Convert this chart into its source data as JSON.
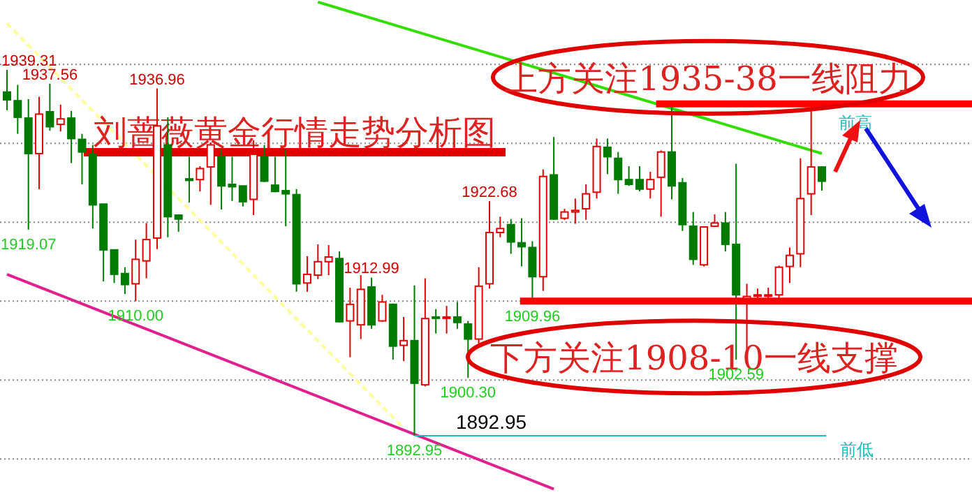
{
  "chart_data": {
    "type": "candlestick",
    "title": "刘蔷薇黄金行情走势分析图",
    "categories": [
      null,
      null,
      null,
      null,
      null,
      null,
      null,
      null,
      null,
      null,
      null,
      null,
      null,
      null,
      null,
      null,
      null,
      null,
      null,
      null,
      null,
      null,
      null,
      null,
      null,
      null,
      null,
      null,
      null,
      null,
      null,
      null,
      null,
      null,
      null,
      null,
      null,
      null,
      null,
      null,
      null,
      null,
      null,
      null,
      null,
      null,
      null,
      null,
      null,
      null,
      null,
      null,
      null,
      null,
      null,
      null,
      null,
      null,
      null,
      null,
      null,
      null,
      null,
      null,
      null,
      null,
      null,
      null,
      null,
      null,
      null,
      null,
      null,
      null,
      null,
      null,
      null
    ],
    "ohlc": [
      [
        1936.5,
        1939.31,
        1934.2,
        1935.5
      ],
      [
        1935.4,
        1937.4,
        1931.2,
        1933.3
      ],
      [
        1933.2,
        1935.6,
        1919.07,
        1928.7
      ],
      [
        1928.7,
        1935.9,
        1924.2,
        1933.7
      ],
      [
        1934.0,
        1937.56,
        1931.6,
        1932.1
      ],
      [
        1932.4,
        1934.9,
        1931.5,
        1933.1
      ],
      [
        1933.2,
        1934.1,
        1927.5,
        1930.6
      ],
      [
        1930.5,
        1931.2,
        1924.8,
        1928.9
      ],
      [
        1928.6,
        1929.8,
        1919.2,
        1922.2
      ],
      [
        1922.3,
        1922.3,
        1912.5,
        1916.5
      ],
      [
        1916.5,
        1916.5,
        1912.3,
        1913.4
      ],
      [
        1913.5,
        1914.3,
        1910.9,
        1912.1
      ],
      [
        1912.2,
        1917.8,
        1910.0,
        1915.3
      ],
      [
        1915.1,
        1919.9,
        1912.9,
        1917.8
      ],
      [
        1918.0,
        1936.96,
        1916.6,
        1932.2
      ],
      [
        1929.8,
        1933.3,
        1918.1,
        1920.7
      ],
      [
        1920.9,
        1921.0,
        1918.8,
        1920.4
      ],
      [
        1925.5,
        1928.3,
        1922.5,
        1925.3
      ],
      [
        1925.4,
        1927.1,
        1923.9,
        1926.8
      ],
      [
        1927.0,
        1930.1,
        1922.2,
        1929.8
      ],
      [
        1928.3,
        1929.2,
        1921.6,
        1924.6
      ],
      [
        1924.8,
        1928.3,
        1922.7,
        1924.5
      ],
      [
        1924.6,
        1924.6,
        1922.0,
        1922.6
      ],
      [
        1922.9,
        1930.4,
        1920.9,
        1928.6
      ],
      [
        1928.3,
        1929.8,
        1925.1,
        1925.2
      ],
      [
        1924.7,
        1928.3,
        1923.8,
        1923.9
      ],
      [
        1924.0,
        1929.2,
        1919.5,
        1923.6
      ],
      [
        1923.5,
        1924.2,
        1911.2,
        1912.2
      ],
      [
        1912.3,
        1915.7,
        1911.2,
        1913.4
      ],
      [
        1913.3,
        1917.2,
        1912.8,
        1915.0
      ],
      [
        1915.0,
        1917.1,
        1913.3,
        1915.6
      ],
      [
        1915.4,
        1916.3,
        1907.3,
        1907.4
      ],
      [
        1907.5,
        1911.7,
        1902.9,
        1909.6
      ],
      [
        1907.0,
        1913.3,
        1905.2,
        1911.5
      ],
      [
        1911.8,
        1912.99,
        1906.5,
        1907.0
      ],
      [
        1907.5,
        1910.8,
        1907.4,
        1909.9
      ],
      [
        1909.6,
        1909.7,
        1902.6,
        1904.3
      ],
      [
        1904.4,
        1908.0,
        1902.4,
        1905.0
      ],
      [
        1905.0,
        1912.0,
        1892.95,
        1899.6
      ],
      [
        1899.4,
        1912.9,
        1899.2,
        1907.8
      ],
      [
        1908.0,
        1909.0,
        1905.9,
        1907.9
      ],
      [
        1907.9,
        1909.4,
        1905.9,
        1908.0
      ],
      [
        1908.0,
        1909.9,
        1906.5,
        1907.3
      ],
      [
        1907.1,
        1907.5,
        1900.3,
        1905.2
      ],
      [
        1905.2,
        1914.3,
        1904.3,
        1911.9
      ],
      [
        1912.2,
        1922.68,
        1911.6,
        1918.7
      ],
      [
        1918.7,
        1920.7,
        1918.1,
        1919.2
      ],
      [
        1919.7,
        1920.4,
        1916.0,
        1917.5
      ],
      [
        1917.4,
        1920.5,
        1914.4,
        1916.9
      ],
      [
        1916.8,
        1917.6,
        1909.96,
        1913.1
      ],
      [
        1913.1,
        1926.7,
        1911.3,
        1925.8
      ],
      [
        1926.0,
        1930.8,
        1920.3,
        1920.4
      ],
      [
        1920.5,
        1921.7,
        1920.3,
        1921.3
      ],
      [
        1921.3,
        1923.0,
        1919.8,
        1921.5
      ],
      [
        1921.7,
        1924.8,
        1920.3,
        1923.6
      ],
      [
        1923.8,
        1930.6,
        1923.0,
        1929.6
      ],
      [
        1929.5,
        1930.6,
        1926.1,
        1928.3
      ],
      [
        1928.1,
        1928.9,
        1923.6,
        1925.4
      ],
      [
        1925.4,
        1927.1,
        1924.6,
        1924.8
      ],
      [
        1925.4,
        1927.1,
        1923.9,
        1924.2
      ],
      [
        1924.2,
        1926.4,
        1923.0,
        1925.4
      ],
      [
        1925.7,
        1929.1,
        1920.7,
        1928.9
      ],
      [
        1928.9,
        1934.9,
        1922.9,
        1924.6
      ],
      [
        1925.0,
        1925.6,
        1918.9,
        1919.7
      ],
      [
        1919.5,
        1921.3,
        1914.6,
        1915.3
      ],
      [
        1914.6,
        1919.4,
        1914.4,
        1919.4
      ],
      [
        1919.5,
        1921.0,
        1919.4,
        1919.9
      ],
      [
        1919.9,
        1921.3,
        1916.3,
        1917.2
      ],
      [
        1917.2,
        1927.4,
        1902.59,
        1910.8
      ],
      [
        1910.0,
        1912.2,
        1903.5,
        1910.6
      ],
      [
        1910.7,
        1911.6,
        1910.2,
        1910.8
      ],
      [
        1910.7,
        1911.7,
        1910.1,
        1910.8
      ],
      [
        1910.8,
        1914.5,
        1909.9,
        1914.3
      ],
      [
        1914.4,
        1916.8,
        1912.3,
        1915.8
      ],
      [
        1916.0,
        1928.1,
        1914.3,
        1923.0
      ],
      [
        1923.6,
        1934.7,
        1920.9,
        1927.0
      ],
      [
        1927.0,
        1927.1,
        1924.0,
        1925.2
      ]
    ],
    "series": [
      {
        "type": "line",
        "color": "#33dd00",
        "line_style": "solid",
        "values": [
          null,
          null,
          null,
          null,
          null,
          null,
          null,
          null,
          null,
          null,
          null,
          null,
          null,
          null,
          null,
          null,
          null,
          null,
          null,
          null,
          null,
          null,
          null,
          null,
          null,
          null,
          null,
          null,
          null,
          1947.9,
          null,
          null,
          null,
          null,
          null,
          null,
          null,
          null,
          null,
          null,
          null,
          null,
          null,
          null,
          null,
          null,
          null,
          null,
          null,
          null,
          null,
          null,
          null,
          null,
          null,
          null,
          null,
          null,
          null,
          null,
          null,
          null,
          null,
          null,
          null,
          null,
          null,
          null,
          null,
          null,
          null,
          null,
          null,
          null,
          null,
          null,
          1928.7
        ]
      },
      {
        "type": "line",
        "color": "#e0208f",
        "line_style": "solid",
        "values": [
          1913.4,
          null,
          null,
          null,
          null,
          null,
          null,
          null,
          null,
          null,
          null,
          null,
          null,
          null,
          null,
          null,
          null,
          null,
          null,
          null,
          null,
          null,
          null,
          null,
          null,
          null,
          null,
          null,
          null,
          null,
          null,
          null,
          null,
          null,
          null,
          null,
          null,
          null,
          null,
          null,
          null,
          null,
          null,
          null,
          null,
          null,
          null,
          null,
          null,
          null,
          null,
          1886.2,
          null,
          null,
          null,
          null,
          null,
          null,
          null,
          null,
          null,
          null,
          null,
          null,
          null,
          null,
          null,
          null,
          null,
          null,
          null,
          null,
          null,
          null,
          null,
          null,
          null
        ]
      },
      {
        "type": "line",
        "color": "#ffff99",
        "line_style": "dashed",
        "values": [
          1945.2,
          null,
          null,
          null,
          null,
          null,
          null,
          null,
          null,
          null,
          null,
          null,
          null,
          null,
          null,
          null,
          null,
          null,
          null,
          null,
          null,
          null,
          null,
          null,
          null,
          null,
          null,
          null,
          null,
          null,
          null,
          null,
          null,
          null,
          null,
          null,
          null,
          1893.9,
          null,
          null,
          null,
          null,
          null,
          null,
          null,
          null,
          null,
          null,
          null,
          null,
          null,
          null,
          null,
          null,
          null,
          null,
          null,
          null,
          null,
          null,
          null,
          null,
          null,
          null,
          null,
          null,
          null,
          null,
          null,
          null,
          null,
          null,
          null,
          null,
          null,
          null,
          null
        ]
      }
    ],
    "grid": "y",
    "ref_lines": [
      {
        "axis": "y",
        "value": 1935,
        "label": "上方关注1935-38一线阻力",
        "color": "#ff0000"
      },
      {
        "axis": "y",
        "value": 1910,
        "label": "下方关注1908-10一线支撑",
        "color": "#ff0000"
      },
      {
        "axis": "y",
        "value": 1892.95,
        "label": "前低",
        "color": "#22bbbb"
      }
    ],
    "annotations": [
      "1939.31",
      {
        "text": "1937.56",
        "y": 1937.56
      },
      {
        "text": "1936.96",
        "y": 1936.96
      },
      {
        "text": "1919.07",
        "y": 1919.07
      },
      {
        "text": "1910.00",
        "y": 1910.0
      },
      {
        "text": "1912.99",
        "y": 1912.99
      },
      {
        "text": "1922.68",
        "y": 1922.68
      },
      {
        "text": "1909.96",
        "y": 1909.96
      },
      {
        "text": "1900.30",
        "y": 1900.3
      },
      {
        "text": "1892.95",
        "y": 1892.95
      },
      {
        "text": "1902.59",
        "y": 1902.59
      },
      {
        "text": "1892.95",
        "y": 1892.95
      },
      {
        "text": "前高",
        "y": 1934
      }
    ]
  }
}
